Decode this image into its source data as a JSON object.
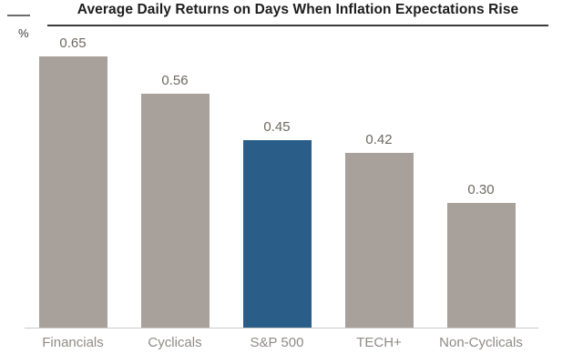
{
  "chart_data": {
    "type": "bar",
    "title": "Average Daily Returns on Days When Inflation Expectations Rise",
    "xlabel": "",
    "ylabel": "%",
    "categories": [
      "Financials",
      "Cyclicals",
      "S&P 500",
      "TECH+",
      "Non-Cyclicals"
    ],
    "values": [
      0.65,
      0.56,
      0.45,
      0.42,
      0.3
    ],
    "data_labels": [
      "0.65",
      "0.56",
      "0.45",
      "0.42",
      "0.30"
    ],
    "highlight_index": 2,
    "highlight_category": "S&P 500",
    "ylim": [
      0,
      0.72
    ],
    "grid": false,
    "legend": false,
    "colors": {
      "bar_default": "#a8a19b",
      "bar_highlight": "#2a5e88",
      "title_text": "#1d1d1f",
      "title_rule": "#3a3a3a",
      "value_label_text": "#6e6963",
      "category_label_text": "#8f8b88",
      "axis_line": "#c9c9c9",
      "background": "#ffffff"
    }
  }
}
